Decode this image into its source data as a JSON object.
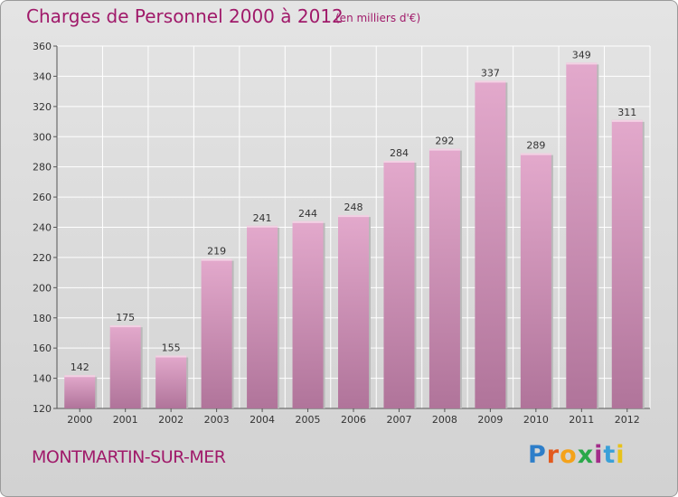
{
  "header": {
    "title": "Charges de Personnel 2000 à 2012",
    "subtitle": "(en milliers d'€)"
  },
  "footer": {
    "town": "MONTMARTIN-SUR-MER",
    "logo_letters": [
      "P",
      "r",
      "o",
      "x",
      "i",
      "t",
      "i"
    ]
  },
  "colors": {
    "bar_top": "#e3a9cc",
    "bar_bottom": "#b0749a",
    "title": "#a01a6a",
    "grid": "#ffffff"
  },
  "chart_data": {
    "type": "bar",
    "title": "Charges de Personnel 2000 à 2012",
    "subtitle": "(en milliers d'€)",
    "categories": [
      "2000",
      "2001",
      "2002",
      "2003",
      "2004",
      "2005",
      "2006",
      "2007",
      "2008",
      "2009",
      "2010",
      "2011",
      "2012"
    ],
    "values": [
      142,
      175,
      155,
      219,
      241,
      244,
      248,
      284,
      292,
      337,
      289,
      349,
      311
    ],
    "ylim": [
      120,
      360
    ],
    "yticks": [
      120,
      140,
      160,
      180,
      200,
      220,
      240,
      260,
      280,
      300,
      320,
      340,
      360
    ],
    "grid": true,
    "data_labels": true
  }
}
